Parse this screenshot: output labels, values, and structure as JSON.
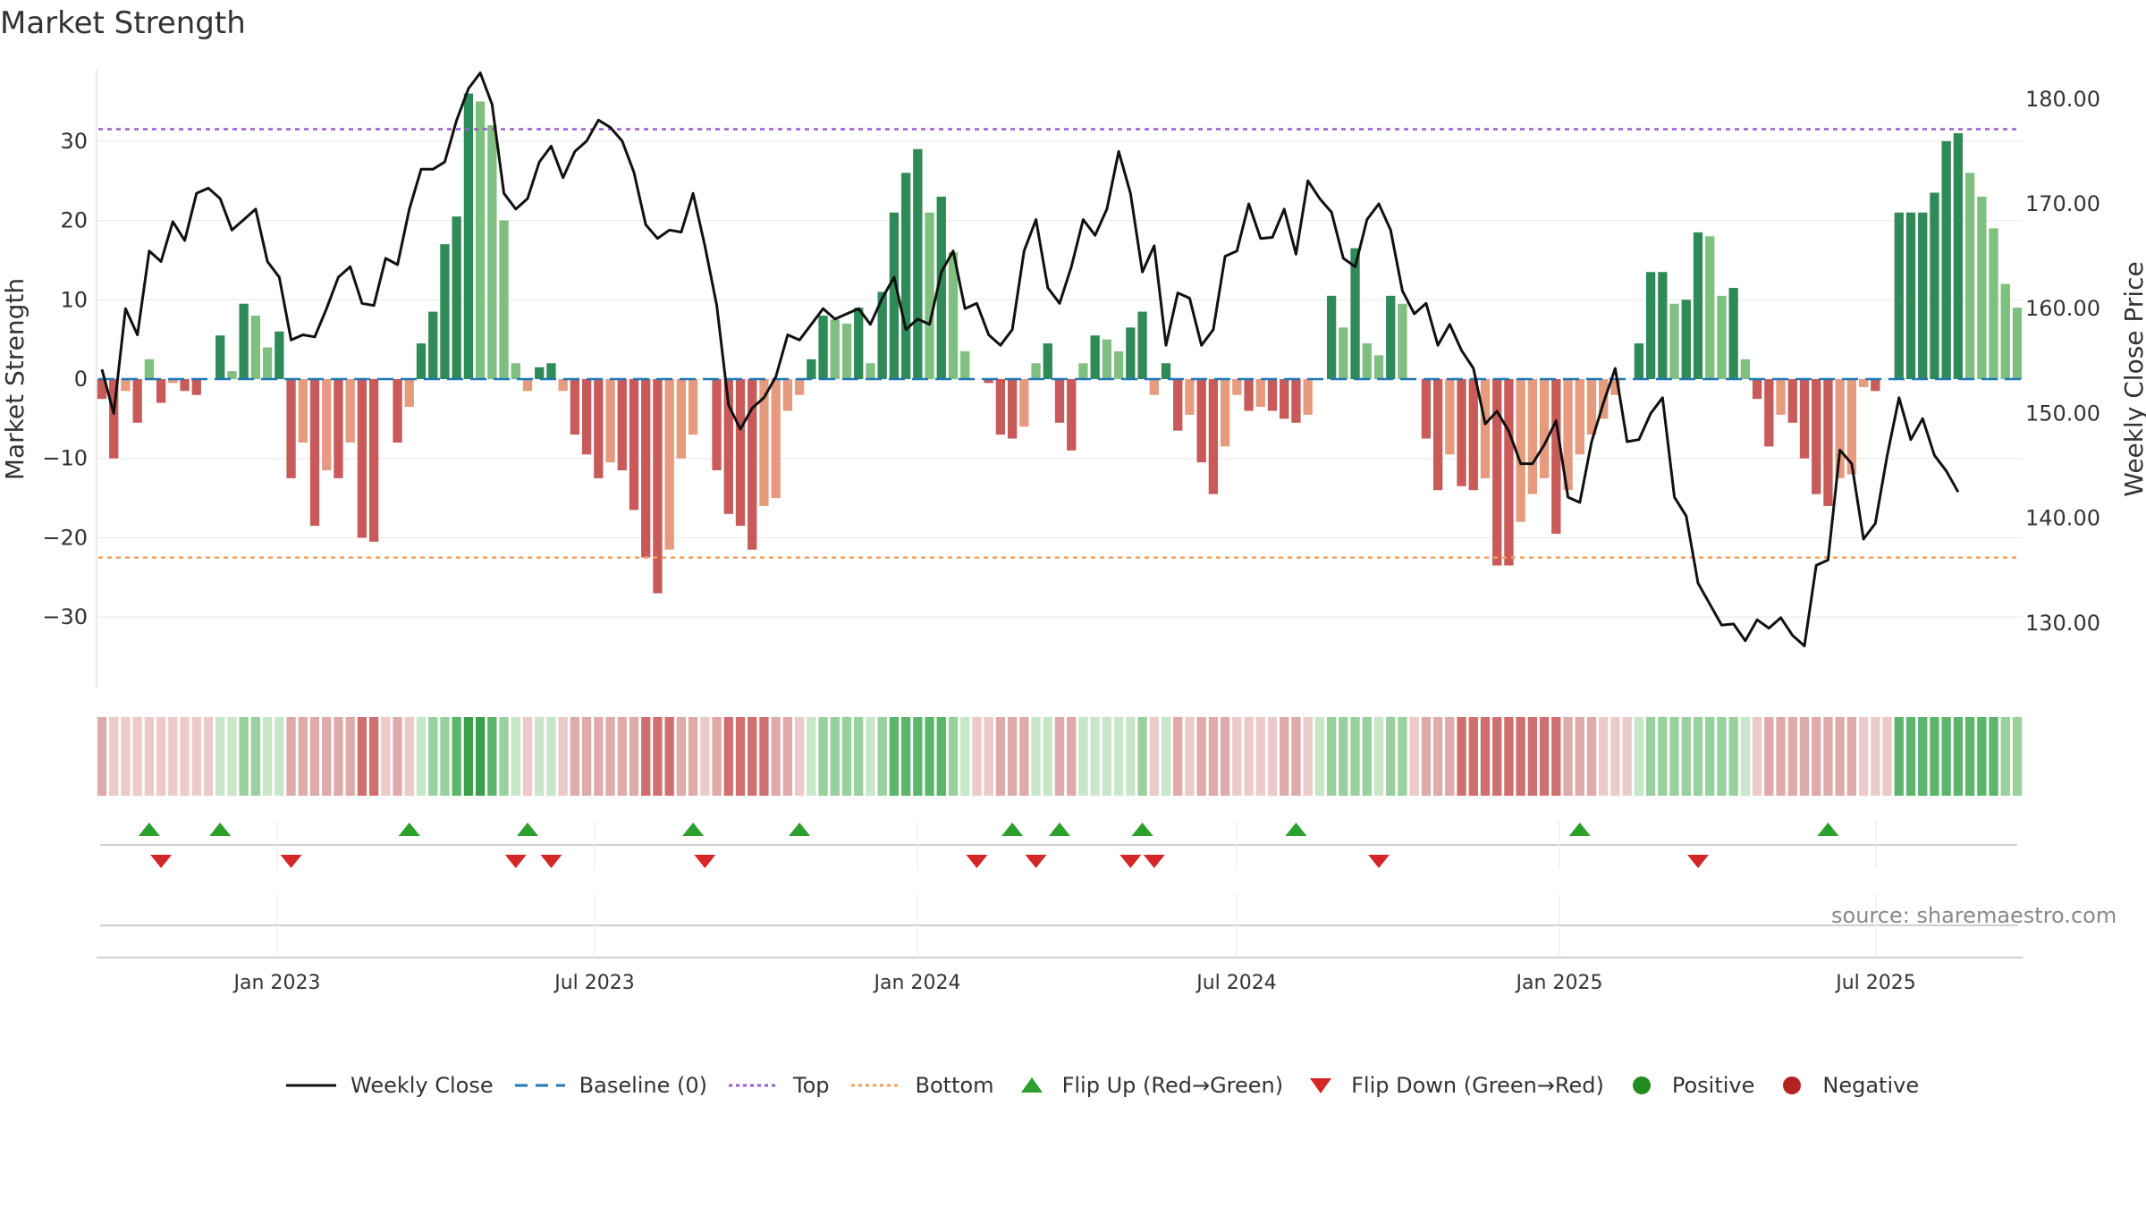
{
  "title": "Market Strength",
  "source_text": "source: sharemaestro.com",
  "colors": {
    "strong_green": "#2e8b57",
    "light_green": "#7fbf7f",
    "strong_red": "#c85a5a",
    "light_red": "#e69a7e",
    "line": "#111111",
    "baseline": "#1f77b4",
    "top": "#9b59d0",
    "bottom": "#f0a060",
    "flip_up": "#2ca02c",
    "flip_down": "#d62728",
    "positive": "#228b22",
    "negative": "#b22222"
  },
  "legend": [
    {
      "label": "Weekly Close",
      "icon": "solid-line-icon"
    },
    {
      "label": "Baseline (0)",
      "icon": "dashed-line-icon"
    },
    {
      "label": "Top",
      "icon": "dotted-line-icon"
    },
    {
      "label": "Bottom",
      "icon": "dotted-line-icon"
    },
    {
      "label": "Flip Up (Red→Green)",
      "icon": "triangle-up-icon"
    },
    {
      "label": "Flip Down (Green→Red)",
      "icon": "triangle-down-icon"
    },
    {
      "label": "Positive",
      "icon": "circle-icon"
    },
    {
      "label": "Negative",
      "icon": "circle-icon"
    }
  ],
  "chart_data": {
    "type": "bar",
    "title": "Market Strength",
    "ylabel": "Market Strength",
    "y2label": "Weekly Close Price",
    "ylim": [
      -39,
      39
    ],
    "y2lim": [
      123.75,
      182.8
    ],
    "yticks": [
      -30,
      -20,
      -10,
      0,
      10,
      20,
      30
    ],
    "yticklabels": [
      "−30",
      "−20",
      "−10",
      "0",
      "10",
      "20",
      "30"
    ],
    "y2ticks": [
      130,
      140,
      150,
      160,
      170,
      180
    ],
    "y2ticklabels": [
      "130.00",
      "140.00",
      "150.00",
      "160.00",
      "170.00",
      "180.00"
    ],
    "top_level": 31.5,
    "bottom_level": -22.5,
    "xticklabels": [
      "Jan 2023",
      "Jul 2023",
      "Jan 2024",
      "Jul 2024",
      "Jan 2025",
      "Jul 2025"
    ],
    "series": [
      {
        "name": "Market Strength",
        "values": [
          -2.5,
          -10,
          -1.5,
          -5.5,
          2.5,
          -3,
          -0.5,
          -1.5,
          -2,
          0,
          5.5,
          1,
          9.5,
          8,
          4,
          6,
          -12.5,
          -8,
          -18.5,
          -11.5,
          -12.5,
          -8,
          -20,
          -20.5,
          0,
          -8,
          -3.5,
          4.5,
          8.5,
          17,
          20.5,
          36,
          35,
          32,
          20,
          2,
          -1.5,
          1.5,
          2,
          -1.5,
          -7,
          -9.5,
          -12.5,
          -10.5,
          -11.5,
          -16.5,
          -22.5,
          -27,
          -21.5,
          -10,
          -7,
          0,
          -11.5,
          -17,
          -18.5,
          -21.5,
          -16,
          -15,
          -4,
          -2,
          2.5,
          8,
          7.5,
          7,
          9,
          2,
          11,
          21,
          26,
          29,
          21,
          23,
          16,
          3.5,
          0,
          -0.5,
          -7,
          -7.5,
          -6,
          2,
          4.5,
          -5.5,
          -9,
          2,
          5.5,
          5,
          3.5,
          6.5,
          8.5,
          -2,
          2,
          -6.5,
          -4.5,
          -10.5,
          -14.5,
          -8.5,
          -2,
          -4,
          -3.5,
          -4,
          -5,
          -5.5,
          -4.5,
          0,
          10.5,
          6.5,
          16.5,
          4.5,
          3,
          10.5,
          9.5,
          0,
          -7.5,
          -14,
          -9.5,
          -13.5,
          -14,
          -12.5,
          -23.5,
          -23.5,
          -18,
          -14.5,
          -12.5,
          -19.5,
          -14,
          -9.5,
          -7,
          -5,
          -2,
          0,
          4.5,
          13.5,
          13.5,
          9.5,
          10,
          18.5,
          18,
          10.5,
          11.5,
          2.5,
          -2.5,
          -8.5,
          -4.5,
          -5.5,
          -10,
          -14.5,
          -16,
          -12.5,
          -12,
          -1,
          -1.5,
          0,
          21,
          21,
          21,
          23.5,
          30,
          31,
          26,
          23,
          19,
          12,
          9
        ]
      },
      {
        "name": "Weekly Close",
        "values": [
          154.2,
          150,
          160,
          157.5,
          165.5,
          164.5,
          168.3,
          166.5,
          171,
          171.5,
          170.5,
          167.5,
          168.5,
          169.5,
          164.5,
          163,
          157,
          157.5,
          157.3,
          160,
          163,
          164,
          160.5,
          160.3,
          164.8,
          164.2,
          169.5,
          173.3,
          173.3,
          174,
          178,
          181,
          182.5,
          179.5,
          171,
          169.5,
          170.5,
          174,
          175.5,
          172.5,
          175,
          176,
          178,
          177.3,
          176,
          173,
          168,
          166.7,
          167.5,
          167.3,
          171,
          166,
          160.3,
          150.8,
          148.5,
          150.5,
          151.5,
          153.5,
          157.5,
          157,
          158.5,
          160,
          159,
          159.5,
          160,
          158.5,
          161,
          163,
          158,
          159,
          158.5,
          163.5,
          165.5,
          160,
          160.5,
          157.5,
          156.5,
          158,
          165.5,
          168.5,
          162,
          160.5,
          164,
          168.5,
          167,
          169.5,
          175,
          171,
          163.5,
          166,
          156.5,
          161.5,
          161,
          156.5,
          158,
          165,
          165.5,
          170,
          166.7,
          166.8,
          169.5,
          165.2,
          172.2,
          170.5,
          169.2,
          164.8,
          164,
          168.5,
          170,
          167.5,
          161.7,
          159.5,
          160.5,
          156.5,
          158.5,
          156,
          154.3,
          149,
          150.2,
          148.3,
          145.2,
          145.2,
          147,
          149.3,
          142,
          141.5,
          147.3,
          151,
          154.3,
          147.3,
          147.5,
          150,
          151.5,
          142,
          140.2,
          133.8,
          131.8,
          129.8,
          129.9,
          128.3,
          130.3,
          129.5,
          130.5,
          128.8,
          127.8,
          135.5,
          136,
          146.5,
          145.2,
          138,
          139.5,
          146,
          151.5,
          147.5,
          149.5,
          146,
          144.5,
          142.5
        ]
      }
    ],
    "heat_strip_levels": [
      -2,
      -1,
      -1,
      -1,
      -1,
      -1,
      -1,
      -1,
      -1,
      -1,
      1,
      1,
      2,
      2,
      1,
      1,
      -2,
      -2,
      -2,
      -2,
      -2,
      -2,
      -3,
      -3,
      -1,
      -2,
      -1,
      1,
      2,
      2,
      3,
      4,
      4,
      3,
      2,
      1,
      -1,
      1,
      1,
      -1,
      -2,
      -2,
      -2,
      -2,
      -2,
      -2,
      -3,
      -3,
      -3,
      -2,
      -2,
      -1,
      -2,
      -3,
      -3,
      -3,
      -3,
      -2,
      -2,
      -1,
      1,
      2,
      2,
      2,
      2,
      1,
      2,
      3,
      3,
      3,
      3,
      3,
      2,
      1,
      -1,
      -1,
      -2,
      -2,
      -2,
      1,
      1,
      -2,
      -2,
      1,
      1,
      1,
      1,
      1,
      2,
      -1,
      1,
      -2,
      -1,
      -2,
      -2,
      -2,
      -1,
      -1,
      -1,
      -1,
      -2,
      -2,
      -1,
      1,
      2,
      2,
      2,
      2,
      1,
      2,
      2,
      -1,
      -2,
      -2,
      -2,
      -3,
      -3,
      -3,
      -3,
      -3,
      -3,
      -3,
      -3,
      -3,
      -2,
      -2,
      -2,
      -1,
      -1,
      -1,
      1,
      2,
      2,
      2,
      2,
      2,
      2,
      2,
      2,
      1,
      -1,
      -2,
      -2,
      -2,
      -2,
      -2,
      -2,
      -2,
      -2,
      -1,
      -1,
      -1,
      3,
      3,
      3,
      3,
      3,
      3,
      3,
      3,
      3,
      2,
      2
    ],
    "flip_up_indices": [
      4,
      10,
      26,
      36,
      50,
      59,
      77,
      81,
      88,
      101,
      125,
      146
    ],
    "flip_down_indices": [
      5,
      16,
      35,
      38,
      51,
      74,
      79,
      87,
      89,
      108,
      135
    ]
  }
}
